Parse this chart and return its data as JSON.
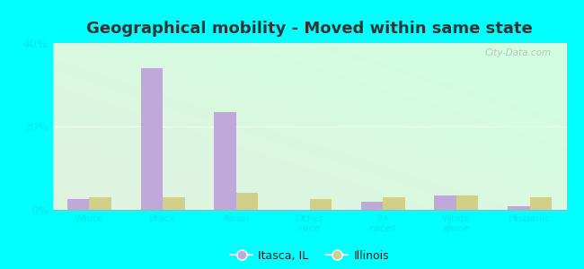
{
  "title": "Geographical mobility - Moved within same state",
  "categories": [
    "White",
    "Black",
    "Asian",
    "Other\nrace",
    "2+\nraces",
    "White\nalone",
    "Hispanic"
  ],
  "itasca_values": [
    2.5,
    34.0,
    23.5,
    0.0,
    2.0,
    3.5,
    0.8
  ],
  "illinois_values": [
    3.0,
    3.0,
    4.0,
    2.5,
    3.0,
    3.5,
    3.0
  ],
  "itasca_color": "#c0a8d8",
  "illinois_color": "#d0d088",
  "ylim": [
    0,
    40
  ],
  "yticks": [
    0,
    20,
    40
  ],
  "ytick_labels": [
    "0%",
    "20%",
    "40%"
  ],
  "background_color": "#00ffff",
  "bar_width": 0.3,
  "legend_labels": [
    "Itasca, IL",
    "Illinois"
  ],
  "title_fontsize": 13,
  "tick_label_color": "#00e5e5",
  "watermark": "City-Data.com"
}
